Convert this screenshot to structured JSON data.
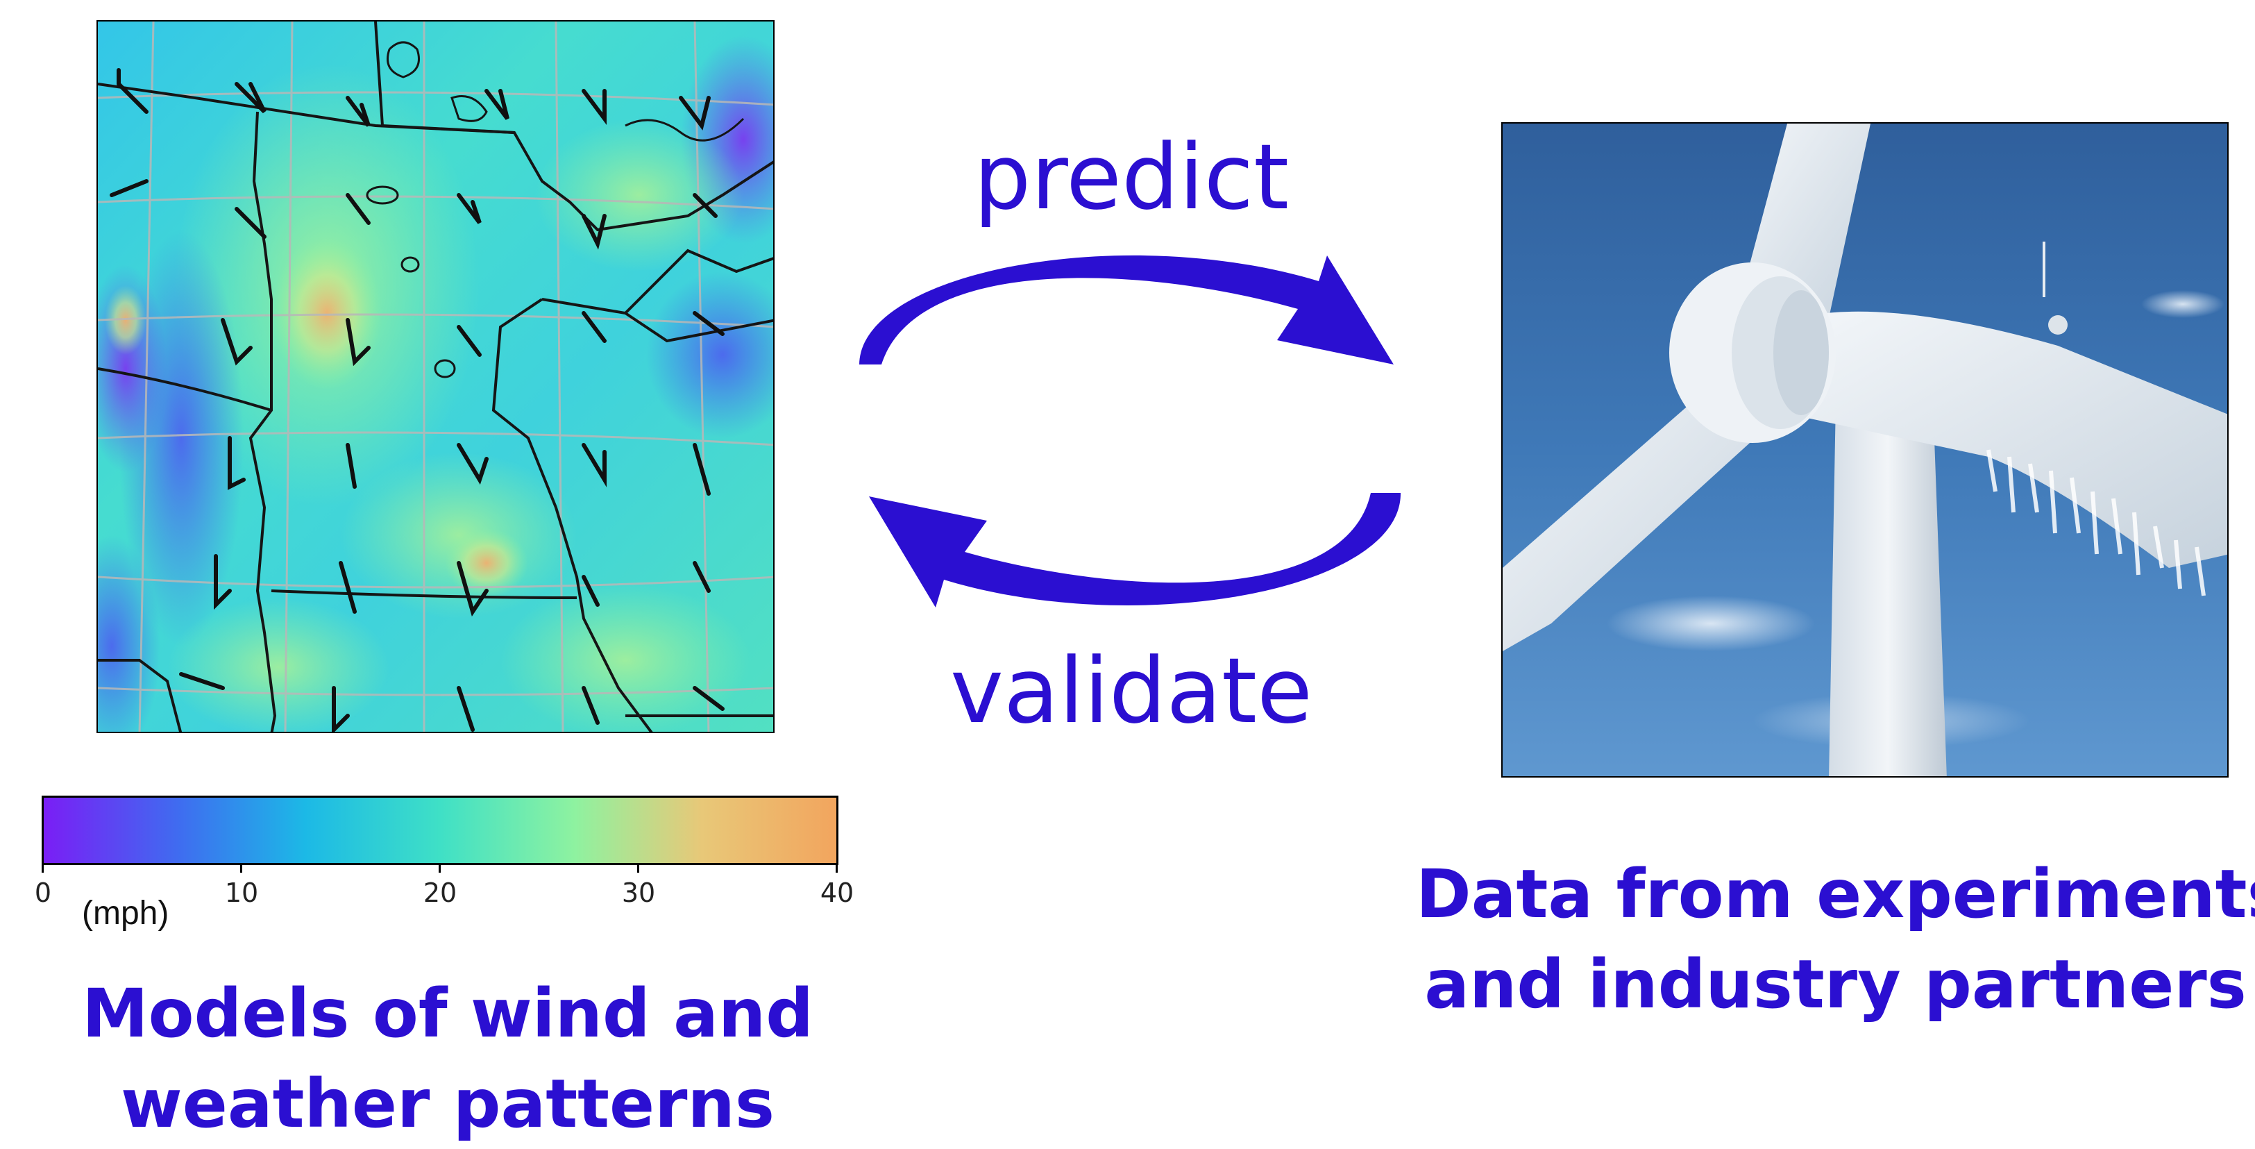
{
  "diagram": {
    "predict_label": "predict",
    "validate_label": "validate",
    "arrow_color": "#2b0fd1"
  },
  "colorbar": {
    "ticks": [
      "0",
      "10",
      "20",
      "30",
      "40"
    ],
    "unit": "(mph)",
    "min": 0,
    "max": 40,
    "colors": [
      "#7a1ef5",
      "#3f6cf0",
      "#1cb9e6",
      "#3fe0c6",
      "#8ef2a0",
      "#e8c878",
      "#f2a55e"
    ]
  },
  "left_caption": {
    "line1": "Models of wind and",
    "line2": "weather patterns"
  },
  "right_caption": {
    "line1": "Data from experiments",
    "line2": "and industry partners"
  }
}
